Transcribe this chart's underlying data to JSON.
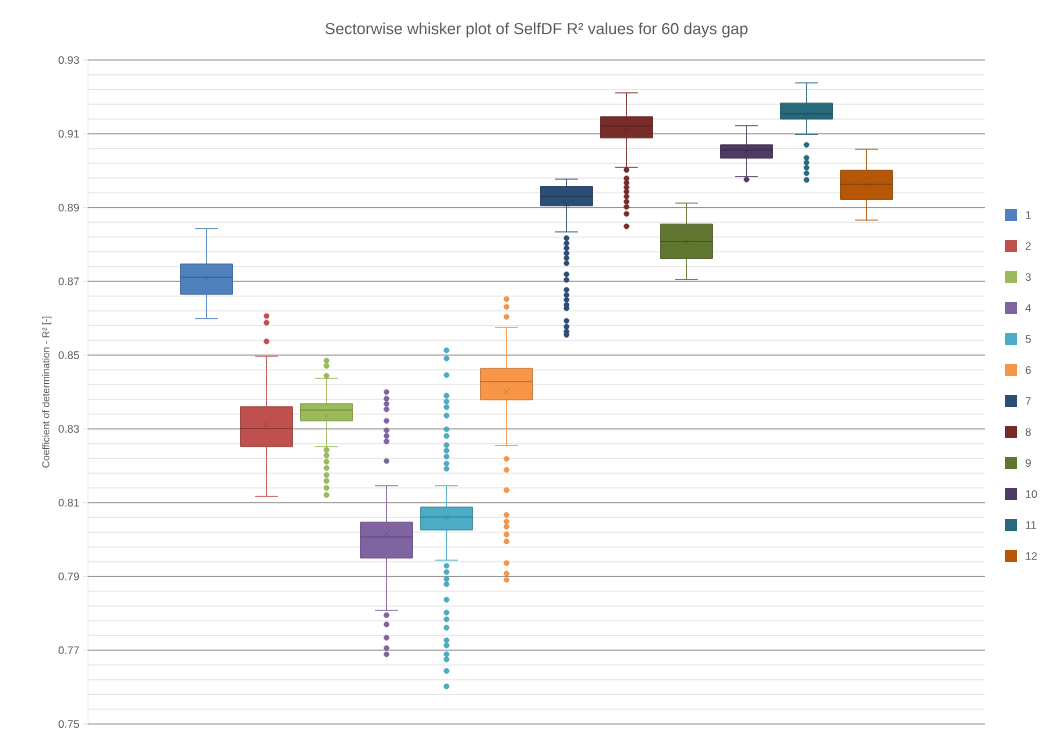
{
  "chart_data": {
    "type": "box",
    "title": "Sectorwise whisker plot of SelfDF R² values for 60 days gap",
    "ylabel": "Coefficient of determination - R² [-]",
    "categories": [
      null
    ],
    "ylim": [
      0.75,
      0.93
    ],
    "yticks": [
      0.75,
      {
        "value": 0.754,
        "label": null
      },
      {
        "value": 0.758,
        "label": null
      },
      {
        "value": 0.762,
        "label": null
      },
      {
        "value": 0.766,
        "label": null
      },
      0.77,
      {
        "value": 0.774,
        "label": null
      },
      {
        "value": 0.778,
        "label": null
      },
      {
        "value": 0.782,
        "label": null
      },
      {
        "value": 0.786,
        "label": null
      },
      0.79,
      {
        "value": 0.794,
        "label": null
      },
      {
        "value": 0.798,
        "label": null
      },
      {
        "value": 0.802,
        "label": null
      },
      {
        "value": 0.806,
        "label": null
      },
      0.81,
      {
        "value": 0.814,
        "label": null
      },
      {
        "value": 0.818,
        "label": null
      },
      {
        "value": 0.822,
        "label": null
      },
      {
        "value": 0.826,
        "label": null
      },
      0.83,
      {
        "value": 0.834,
        "label": null
      },
      {
        "value": 0.838,
        "label": null
      },
      {
        "value": 0.842,
        "label": null
      },
      {
        "value": 0.846,
        "label": null
      },
      0.85,
      {
        "value": 0.854,
        "label": null
      },
      {
        "value": 0.858,
        "label": null
      },
      {
        "value": 0.862,
        "label": null
      },
      {
        "value": 0.866,
        "label": null
      },
      0.87,
      {
        "value": 0.874,
        "label": null
      },
      {
        "value": 0.878,
        "label": null
      },
      {
        "value": 0.882,
        "label": null
      },
      {
        "value": 0.886,
        "label": null
      },
      0.89,
      {
        "value": 0.894,
        "label": null
      },
      {
        "value": 0.898,
        "label": null
      },
      {
        "value": 0.902,
        "label": null
      },
      {
        "value": 0.906,
        "label": null
      },
      0.91,
      {
        "value": 0.914,
        "label": null
      },
      {
        "value": 0.918,
        "label": null
      },
      {
        "value": 0.922,
        "label": null
      },
      {
        "value": 0.926,
        "label": null
      },
      0.93
    ],
    "grid": "y",
    "legend": "right",
    "tick_labels": "y",
    "series": [
      {
        "name": "1",
        "color": "#4f81bd",
        "boxes": [
          {
            "low": 0.8599,
            "q1": 0.8665,
            "median": 0.8711,
            "q3": 0.8747,
            "high": 0.8843,
            "mean": 0.8709
          }
        ]
      },
      {
        "name": "2",
        "color": "#c0504d",
        "boxes": [
          {
            "low": 0.8117,
            "q1": 0.8252,
            "median": 0.8301,
            "q3": 0.836,
            "high": 0.8497,
            "mean": 0.8313,
            "outliers": [
              0.8606,
              0.8588,
              0.8537
            ]
          }
        ]
      },
      {
        "name": "3",
        "color": "#9bbb59",
        "boxes": [
          {
            "low": 0.8252,
            "q1": 0.8322,
            "median": 0.8351,
            "q3": 0.8368,
            "high": 0.8437,
            "mean": 0.8334,
            "outliers": [
              0.8485,
              0.8471,
              0.8444,
              0.8243,
              0.8228,
              0.8211,
              0.8194,
              0.8175,
              0.8159,
              0.814,
              0.8121
            ]
          }
        ]
      },
      {
        "name": "4",
        "color": "#8064a2",
        "boxes": [
          {
            "low": 0.7808,
            "q1": 0.795,
            "median": 0.8007,
            "q3": 0.8047,
            "high": 0.8146,
            "mean": 0.8017,
            "outliers": [
              0.84,
              0.8382,
              0.8368,
              0.8353,
              0.8322,
              0.8296,
              0.8281,
              0.8266,
              0.8213,
              0.7795,
              0.777,
              0.7734,
              0.7706,
              0.7689
            ]
          }
        ]
      },
      {
        "name": "5",
        "color": "#4bacc6",
        "boxes": [
          {
            "low": 0.7944,
            "q1": 0.8026,
            "median": 0.8061,
            "q3": 0.8088,
            "high": 0.8146,
            "mean": 0.806,
            "outliers": [
              0.8513,
              0.8491,
              0.8446,
              0.839,
              0.8374,
              0.8359,
              0.8336,
              0.8299,
              0.8281,
              0.8256,
              0.8241,
              0.8225,
              0.8206,
              0.8192,
              0.7929,
              0.7912,
              0.7893,
              0.7879,
              0.7837,
              0.7802,
              0.7784,
              0.7761,
              0.7727,
              0.7713,
              0.7689,
              0.7675,
              0.7644,
              0.7602
            ]
          }
        ]
      },
      {
        "name": "6",
        "color": "#f79646",
        "boxes": [
          {
            "low": 0.8255,
            "q1": 0.8379,
            "median": 0.8428,
            "q3": 0.8464,
            "high": 0.8575,
            "mean": 0.8401,
            "outliers": [
              0.8652,
              0.8631,
              0.8604,
              0.8219,
              0.8189,
              0.8134,
              0.8067,
              0.8049,
              0.8035,
              0.8014,
              0.7995,
              0.7936,
              0.7908,
              0.7891
            ]
          }
        ]
      },
      {
        "name": "7",
        "color": "#2c4d75",
        "boxes": [
          {
            "low": 0.8834,
            "q1": 0.8905,
            "median": 0.893,
            "q3": 0.8957,
            "high": 0.8977,
            "mean": 0.8909,
            "outliers": [
              0.8817,
              0.8803,
              0.879,
              0.8776,
              0.8763,
              0.8749,
              0.8719,
              0.8704,
              0.8677,
              0.8663,
              0.865,
              0.8636,
              0.8627,
              0.8593,
              0.8577,
              0.8564,
              0.8555
            ]
          }
        ]
      },
      {
        "name": "8",
        "color": "#772c2a",
        "boxes": [
          {
            "low": 0.9009,
            "q1": 0.9089,
            "median": 0.9121,
            "q3": 0.9146,
            "high": 0.9211,
            "mean": 0.9108,
            "outliers": [
              0.9002,
              0.8979,
              0.8967,
              0.8955,
              0.8943,
              0.893,
              0.8916,
              0.8902,
              0.8883,
              0.8849
            ]
          }
        ]
      },
      {
        "name": "9",
        "color": "#5f7530",
        "boxes": [
          {
            "low": 0.8705,
            "q1": 0.8762,
            "median": 0.8808,
            "q3": 0.8855,
            "high": 0.8912,
            "mean": 0.8808
          }
        ]
      },
      {
        "name": "10",
        "color": "#4d3b62",
        "boxes": [
          {
            "low": 0.8984,
            "q1": 0.9034,
            "median": 0.9056,
            "q3": 0.907,
            "high": 0.9122,
            "mean": 0.9053,
            "outliers": [
              0.8976
            ]
          }
        ]
      },
      {
        "name": "11",
        "color": "#276a7c",
        "boxes": [
          {
            "low": 0.9098,
            "q1": 0.914,
            "median": 0.9154,
            "q3": 0.9183,
            "high": 0.9238,
            "mean": 0.9154,
            "outliers": [
              0.907,
              0.9035,
              0.9022,
              0.9008,
              0.8993,
              0.8975
            ]
          }
        ]
      },
      {
        "name": "12",
        "color": "#b65708",
        "boxes": [
          {
            "low": 0.8866,
            "q1": 0.8922,
            "median": 0.8963,
            "q3": 0.9001,
            "high": 0.9058,
            "mean": 0.8963
          }
        ]
      }
    ]
  }
}
